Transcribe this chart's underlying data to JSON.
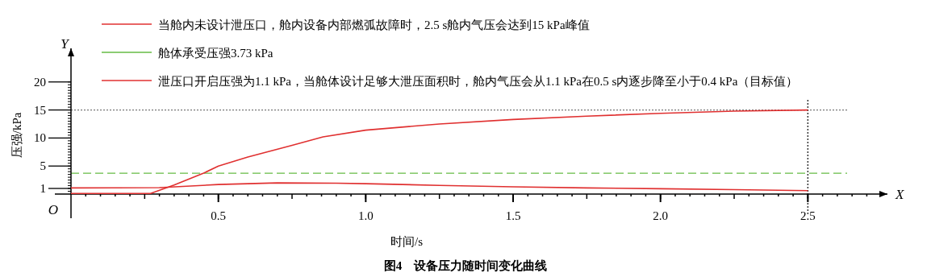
{
  "chart_data": {
    "type": "line",
    "title": "图4　设备压力随时间变化曲线",
    "xlabel": "时间/s",
    "ylabel": "压强/kPa",
    "annotations": [
      "Y",
      "X",
      "O"
    ],
    "xlim": [
      0,
      2.77
    ],
    "ylim": [
      0,
      26
    ],
    "xticks": [
      0.5,
      {
        "value": 1,
        "label": "1.0"
      },
      1.5,
      {
        "value": 2,
        "label": "2.0"
      },
      2.5
    ],
    "yticks": [
      1,
      5,
      10,
      15,
      20
    ],
    "legend": "top",
    "line_style": "solid",
    "marker": "none",
    "grid": false,
    "series": [
      {
        "name": "当舱内未设计泄压口，舱内设备内部燃弧故障时，2.5 s舱内气压会达到15 kPa峰值",
        "color": "#e03030",
        "x": [
          0,
          0.27,
          0.35,
          0.45,
          0.5,
          0.6,
          0.75,
          0.855,
          1.0,
          1.25,
          1.5,
          1.75,
          2.0,
          2.25,
          2.5
        ],
        "values": [
          0.1,
          0.1,
          1.6,
          3.73,
          5.0,
          6.6,
          8.7,
          10.2,
          11.4,
          12.5,
          13.3,
          13.9,
          14.4,
          14.8,
          15.0
        ]
      },
      {
        "name": "泄压口开启压强为1.1 kPa，当舱体设计足够大泄压面积时，舱内气压会从1.1 kPa在0.5 s内逐步降至小于0.4 kPa（目标值）",
        "color": "#e03030",
        "x": [
          0,
          0.3,
          0.5,
          0.7,
          0.9,
          1.0,
          1.25,
          1.5,
          1.75,
          2.0,
          2.25,
          2.5
        ],
        "values": [
          1.1,
          1.15,
          1.7,
          2.0,
          1.95,
          1.85,
          1.55,
          1.3,
          1.1,
          0.95,
          0.8,
          0.6
        ]
      }
    ],
    "ref_lines": [
      {
        "axis": "y",
        "value": 3.73,
        "label": "舱体承受压强3.73 kPa",
        "color": "#66bb44",
        "line_style": "dashed"
      },
      {
        "axis": "y",
        "value": 15,
        "color": "#777777",
        "line_style": "dotted"
      },
      {
        "axis": "x",
        "value": 2.5,
        "color": "#333333",
        "line_style": "dotted"
      }
    ]
  }
}
